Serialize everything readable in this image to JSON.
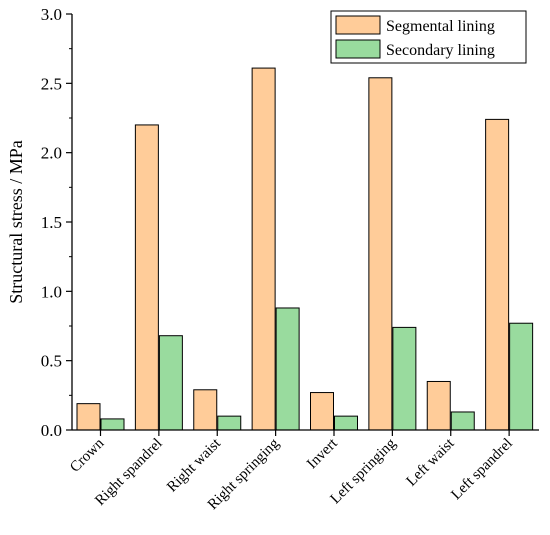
{
  "chart_data": {
    "type": "bar",
    "title": "",
    "xlabel": "",
    "ylabel": "Structural stress / MPa",
    "ylim": [
      0,
      3.0
    ],
    "yticks": [
      "0.0",
      "0.5",
      "1.0",
      "1.5",
      "2.0",
      "2.5",
      "3.0"
    ],
    "grid": false,
    "legend_position": "top-right",
    "categories": [
      "Crown",
      "Right spandrel",
      "Right waist",
      "Right springing",
      "Invert",
      "Left springing",
      "Left waist",
      "Left spandrel"
    ],
    "series": [
      {
        "name": "Segmental lining",
        "color": "#FFCC99",
        "values": [
          0.19,
          2.2,
          0.29,
          2.61,
          0.27,
          2.54,
          0.35,
          2.24
        ]
      },
      {
        "name": "Secondary lining",
        "color": "#99DB9E",
        "values": [
          0.08,
          0.68,
          0.1,
          0.88,
          0.1,
          0.74,
          0.13,
          0.77
        ]
      }
    ]
  }
}
